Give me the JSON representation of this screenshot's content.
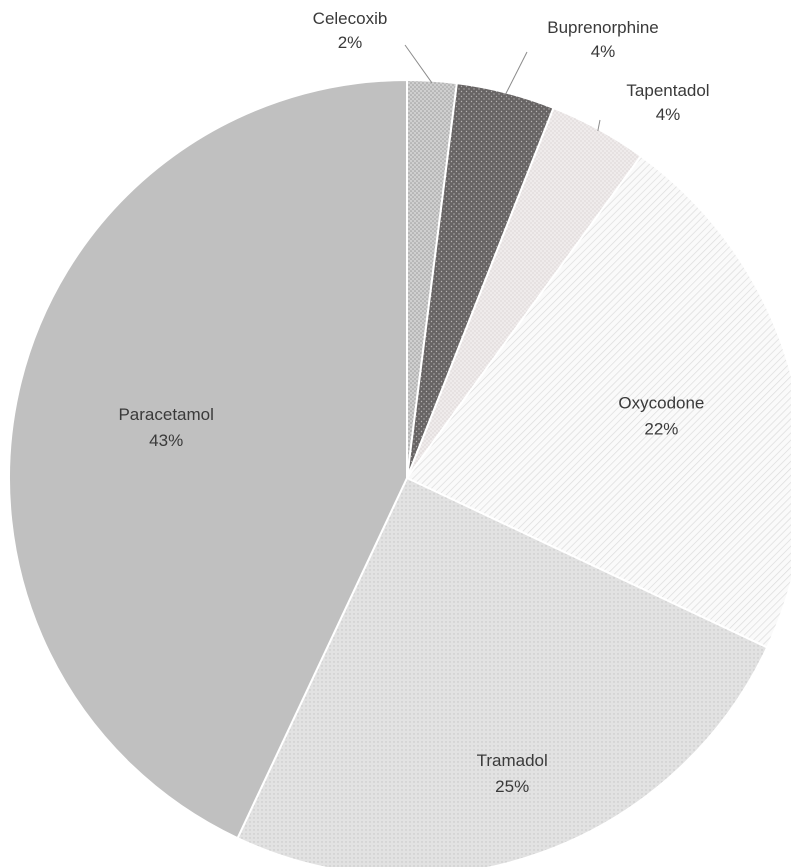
{
  "chart_data": {
    "type": "pie",
    "title": "",
    "slices": [
      {
        "label": "Celecoxib",
        "value": 2,
        "value_label": "2%",
        "color": "#c8c8c8",
        "pattern": "dense-dots",
        "label_position": "outside"
      },
      {
        "label": "Buprenorphine",
        "value": 4,
        "value_label": "4%",
        "color": "#6e6b6b",
        "pattern": "light-dots",
        "label_position": "outside"
      },
      {
        "label": "Tapentadol",
        "value": 4,
        "value_label": "4%",
        "color": "#ece8e8",
        "pattern": "fine-dots",
        "label_position": "outside"
      },
      {
        "label": "Oxycodone",
        "value": 22,
        "value_label": "22%",
        "color": "#f6f6f6",
        "pattern": "diagonal-hatch",
        "label_position": "inside"
      },
      {
        "label": "Tramadol",
        "value": 25,
        "value_label": "25%",
        "color": "#dcdcdc",
        "pattern": "small-dots",
        "label_position": "inside"
      },
      {
        "label": "Paracetamol",
        "value": 43,
        "value_label": "43%",
        "color": "#c0c0c0",
        "pattern": "solid",
        "label_position": "inside"
      }
    ],
    "start_angle_deg": 0,
    "direction": "clockwise",
    "legend": "none"
  }
}
